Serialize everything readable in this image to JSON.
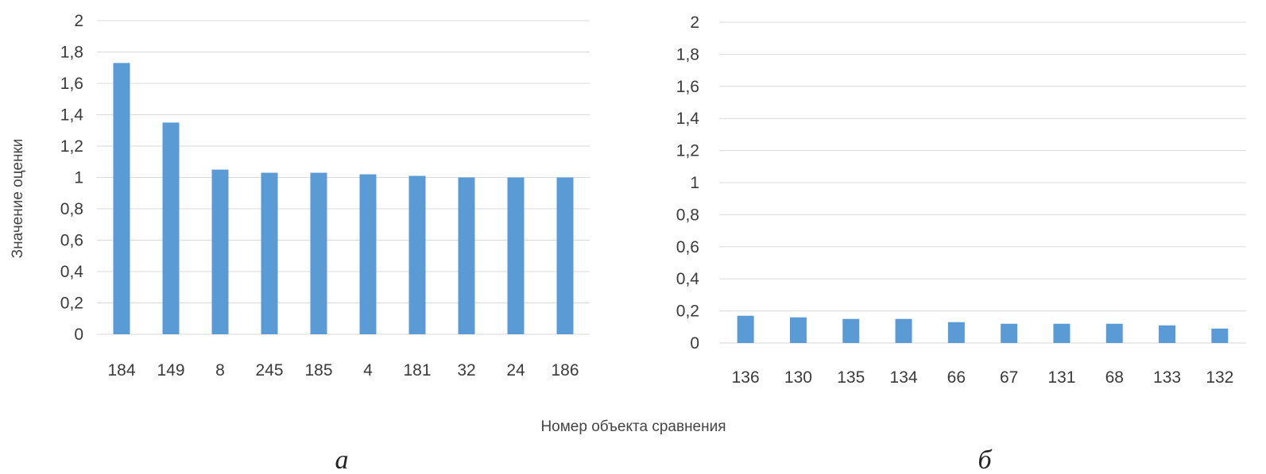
{
  "figure": {
    "shared_xlabel": "Номер объекта сравнения",
    "bar_color": "#5b9bd5",
    "grid_color": "#d9d9d9"
  },
  "chart_data": [
    {
      "type": "bar",
      "caption": "а",
      "ylabel": "Значение оценки",
      "xlabel": "",
      "ylim": [
        0,
        2
      ],
      "yticks": [
        "0",
        "0,2",
        "0,4",
        "0,6",
        "0,8",
        "1",
        "1,2",
        "1,4",
        "1,6",
        "1,8",
        "2"
      ],
      "grid": true,
      "categories": [
        "184",
        "149",
        "8",
        "245",
        "185",
        "4",
        "181",
        "32",
        "24",
        "186"
      ],
      "values": [
        1.73,
        1.35,
        1.05,
        1.03,
        1.03,
        1.02,
        1.01,
        1.0,
        1.0,
        1.0
      ]
    },
    {
      "type": "bar",
      "caption": "б",
      "ylabel": "",
      "xlabel": "",
      "ylim": [
        0,
        2
      ],
      "yticks": [
        "0",
        "0,2",
        "0,4",
        "0,6",
        "0,8",
        "1",
        "1,2",
        "1,4",
        "1,6",
        "1,8",
        "2"
      ],
      "grid": true,
      "categories": [
        "136",
        "130",
        "135",
        "134",
        "66",
        "67",
        "131",
        "68",
        "133",
        "132"
      ],
      "values": [
        0.17,
        0.16,
        0.15,
        0.15,
        0.13,
        0.12,
        0.12,
        0.12,
        0.11,
        0.09
      ]
    }
  ]
}
